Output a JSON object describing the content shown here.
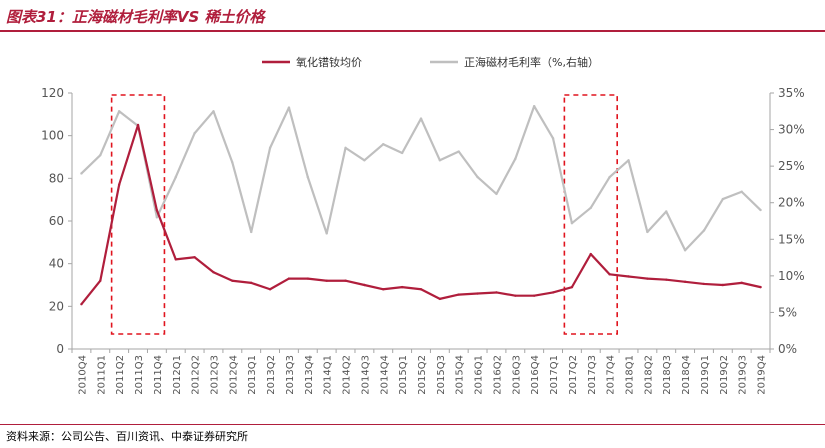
{
  "title": "图表31：正海磁材毛利率VS 稀土价格",
  "source": "资料来源：公司公告、百川资讯、中泰证券研究所",
  "chart_data": {
    "type": "line",
    "categories": [
      "2010Q4",
      "2011Q1",
      "2011Q2",
      "2011Q3",
      "2011Q4",
      "2012Q1",
      "2012Q2",
      "2012Q3",
      "2012Q4",
      "2013Q1",
      "2013Q2",
      "2013Q3",
      "2013Q4",
      "2014Q1",
      "2014Q2",
      "2014Q3",
      "2014Q4",
      "2015Q1",
      "2015Q2",
      "2015Q3",
      "2015Q4",
      "2016Q1",
      "2016Q2",
      "2016Q3",
      "2016Q4",
      "2017Q1",
      "2017Q2",
      "2017Q3",
      "2017Q4",
      "2018Q1",
      "2018Q2",
      "2018Q3",
      "2018Q4",
      "2019Q1",
      "2019Q2",
      "2019Q3",
      "2019Q4"
    ],
    "series": [
      {
        "name": "氧化镨钕均价",
        "axis": "left",
        "color": "#b01e3c",
        "values": [
          21,
          32,
          77,
          105,
          65,
          42,
          43,
          36,
          32,
          31,
          28,
          33,
          33,
          32,
          32,
          30,
          28,
          29,
          28,
          23.5,
          25.5,
          26,
          26.5,
          25,
          25,
          26.5,
          29,
          44.5,
          35,
          34,
          33,
          32.5,
          31.5,
          30.5,
          30,
          31,
          29
        ]
      },
      {
        "name": "正海磁材毛利率（%,右轴）",
        "axis": "right",
        "color": "#bfbfbf",
        "values": [
          24,
          26.5,
          32.5,
          30.5,
          18,
          23.5,
          29.5,
          32.5,
          25.5,
          16,
          27.5,
          33,
          23.5,
          15.8,
          27.5,
          25.8,
          28,
          26.8,
          31.5,
          25.8,
          27,
          23.5,
          21.2,
          26,
          33.2,
          28.8,
          17.2,
          19.3,
          23.5,
          25.8,
          16,
          18.8,
          13.5,
          16.2,
          20.5,
          21.5,
          19
        ]
      }
    ],
    "y_left": {
      "min": 0,
      "max": 120,
      "ticks": [
        "0",
        "20",
        "40",
        "60",
        "80",
        "100",
        "120"
      ]
    },
    "y_right": {
      "min": 0,
      "max": 35,
      "ticks": [
        "0%",
        "5%",
        "10%",
        "15%",
        "20%",
        "25%",
        "30%",
        "35%"
      ]
    },
    "highlight_boxes": [
      {
        "from": "2011Q2",
        "to": "2011Q4"
      },
      {
        "from": "2017Q2",
        "to": "2017Q4"
      }
    ],
    "legend_position": "top-center",
    "grid": false
  }
}
